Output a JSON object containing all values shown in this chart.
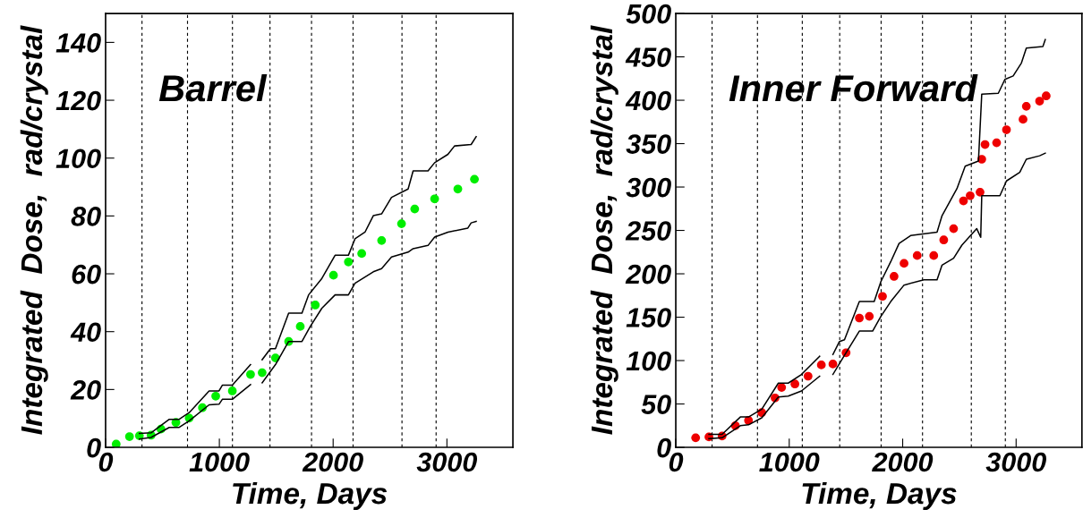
{
  "chart_data": [
    {
      "type": "scatter",
      "title": "Barrel",
      "xlabel": "Time, Days",
      "ylabel": "Integrated  Dose,  rad/crystal",
      "xlim": [
        0,
        3580
      ],
      "ylim": [
        0,
        150
      ],
      "xticks": [
        0,
        1000,
        2000,
        3000
      ],
      "yticks": [
        0,
        20,
        40,
        60,
        80,
        100,
        120,
        140
      ],
      "grid": false,
      "legend": false,
      "series": [
        {
          "marker": "circle",
          "color": "#00ee00",
          "x": [
            93,
            210,
            297,
            400,
            487,
            618,
            735,
            851,
            968,
            1114,
            1274,
            1376,
            1493,
            1609,
            1711,
            1843,
            2003,
            2134,
            2251,
            2426,
            2601,
            2717,
            2892,
            3096,
            3242
          ],
          "values": [
            1.1,
            3.7,
            4.0,
            4.2,
            6.3,
            8.6,
            10.1,
            13.7,
            17.7,
            19.5,
            25.2,
            25.8,
            30.9,
            36.6,
            41.8,
            49.2,
            59.5,
            64.1,
            67.0,
            71.5,
            77.3,
            82.4,
            85.9,
            89.3,
            92.7
          ]
        },
        {
          "type": "line",
          "marker": "none",
          "color": "#000000",
          "x": [
            297,
            399,
            560,
            647,
            735,
            910,
            997,
            1026,
            1114,
            1274,
            1330,
            1376,
            1449,
            1493,
            1609,
            1726,
            1784,
            1901,
            2017,
            2134,
            2192,
            2280,
            2353,
            2426,
            2513,
            2659,
            2703,
            2834,
            2892,
            3009,
            3067,
            3213,
            3257
          ],
          "values": [
            4.8,
            5.0,
            9.7,
            9.7,
            12.0,
            19.5,
            19.5,
            21.5,
            21.5,
            28.6,
            null,
            30.3,
            34.1,
            34.1,
            46.4,
            46.4,
            52.7,
            58.4,
            66.4,
            66.4,
            72.1,
            74.4,
            80.1,
            80.7,
            86.4,
            89.3,
            95.6,
            95.6,
            98.4,
            101.3,
            104.2,
            104.7,
            107.4
          ]
        },
        {
          "type": "line",
          "marker": "none",
          "color": "#000000",
          "x": [
            297,
            399,
            560,
            647,
            735,
            910,
            997,
            1026,
            1114,
            1274,
            1330,
            1376,
            1493,
            1609,
            1726,
            1799,
            1901,
            2017,
            2134,
            2192,
            2353,
            2426,
            2513,
            2659,
            2703,
            2834,
            2892,
            3009,
            3184,
            3213,
            3257
          ],
          "values": [
            2.9,
            3.4,
            6.9,
            6.9,
            9.2,
            14.7,
            14.9,
            16.6,
            16.6,
            21.7,
            null,
            22.3,
            28.6,
            36.6,
            36.6,
            41.8,
            48.1,
            52.7,
            52.7,
            56.7,
            60.7,
            61.8,
            65.8,
            67.5,
            68.7,
            69.8,
            72.7,
            74.4,
            75.8,
            77.6,
            78.1
          ]
        }
      ],
      "ref_lines": [
        {
          "axis": "x",
          "value": 320,
          "color": "#000000",
          "line_style": "dashed"
        },
        {
          "axis": "x",
          "value": 720,
          "color": "#000000",
          "line_style": "dashed"
        },
        {
          "axis": "x",
          "value": 1115,
          "color": "#000000",
          "line_style": "dashed"
        },
        {
          "axis": "x",
          "value": 1445,
          "color": "#000000",
          "line_style": "dashed"
        },
        {
          "axis": "x",
          "value": 1810,
          "color": "#000000",
          "line_style": "dashed"
        },
        {
          "axis": "x",
          "value": 2175,
          "color": "#000000",
          "line_style": "dashed"
        },
        {
          "axis": "x",
          "value": 2605,
          "color": "#000000",
          "line_style": "dashed"
        },
        {
          "axis": "x",
          "value": 2905,
          "color": "#000000",
          "line_style": "dashed"
        }
      ]
    },
    {
      "type": "scatter",
      "title": "Inner Forward",
      "xlabel": "Time, Days",
      "ylabel": "Integrated  Dose,  rad/crystal",
      "xlim": [
        0,
        3580
      ],
      "ylim": [
        0,
        500
      ],
      "xticks": [
        0,
        1000,
        2000,
        3000
      ],
      "yticks": [
        0,
        50,
        100,
        150,
        200,
        250,
        300,
        350,
        400,
        450,
        500
      ],
      "grid": false,
      "legend": false,
      "series": [
        {
          "marker": "circle",
          "color": "#ee0000",
          "x": [
            175,
            292,
            408,
            525,
            641,
            758,
            875,
            933,
            1050,
            1166,
            1283,
            1385,
            1501,
            1618,
            1706,
            1822,
            1924,
            2012,
            2128,
            2274,
            2362,
            2449,
            2536,
            2595,
            2682,
            2697,
            2726,
            2828,
            2915,
            3061,
            3090,
            3207,
            3265
          ],
          "values": [
            11,
            12,
            13,
            25,
            31,
            40,
            57,
            69,
            73,
            82,
            95,
            96,
            109,
            149,
            151,
            174,
            197,
            212,
            221,
            221,
            239,
            252,
            284,
            290,
            294,
            332,
            349,
            351,
            366,
            378,
            393,
            399,
            405
          ]
        },
        {
          "type": "line",
          "marker": "none",
          "color": "#000000",
          "x": [
            292,
            408,
            569,
            641,
            758,
            904,
            991,
            1108,
            1268,
            1330,
            1385,
            1443,
            1487,
            1618,
            1749,
            1808,
            1895,
            1968,
            2070,
            2303,
            2347,
            2478,
            2551,
            2668,
            2697,
            2843,
            2901,
            2974,
            3047,
            3090,
            3236,
            3257
          ],
          "values": [
            15,
            15,
            35,
            35,
            44,
            74,
            74,
            84,
            105,
            null,
            107,
            122,
            124,
            168,
            168,
            191,
            214,
            235,
            244,
            248,
            267,
            298,
            324,
            330,
            407,
            408,
            424,
            428,
            443,
            460,
            462,
            470
          ]
        },
        {
          "type": "line",
          "marker": "none",
          "color": "#000000",
          "x": [
            292,
            408,
            569,
            641,
            758,
            904,
            991,
            1108,
            1268,
            1330,
            1385,
            1487,
            1618,
            1735,
            1808,
            1895,
            2012,
            2187,
            2303,
            2347,
            2449,
            2522,
            2653,
            2688,
            2697,
            2857,
            2915,
            3032,
            3090,
            3207,
            3257
          ],
          "values": [
            10,
            11,
            25,
            26,
            34,
            58,
            59,
            65,
            82,
            null,
            84,
            106,
            134,
            134,
            151,
            168,
            187,
            193,
            193,
            210,
            218,
            233,
            252,
            242,
            290,
            290,
            307,
            317,
            332,
            336,
            339
          ]
        }
      ],
      "ref_lines": [
        {
          "axis": "x",
          "value": 320,
          "color": "#000000",
          "line_style": "dashed"
        },
        {
          "axis": "x",
          "value": 720,
          "color": "#000000",
          "line_style": "dashed"
        },
        {
          "axis": "x",
          "value": 1115,
          "color": "#000000",
          "line_style": "dashed"
        },
        {
          "axis": "x",
          "value": 1445,
          "color": "#000000",
          "line_style": "dashed"
        },
        {
          "axis": "x",
          "value": 1810,
          "color": "#000000",
          "line_style": "dashed"
        },
        {
          "axis": "x",
          "value": 2175,
          "color": "#000000",
          "line_style": "dashed"
        },
        {
          "axis": "x",
          "value": 2605,
          "color": "#000000",
          "line_style": "dashed"
        },
        {
          "axis": "x",
          "value": 2905,
          "color": "#000000",
          "line_style": "dashed"
        }
      ]
    }
  ]
}
